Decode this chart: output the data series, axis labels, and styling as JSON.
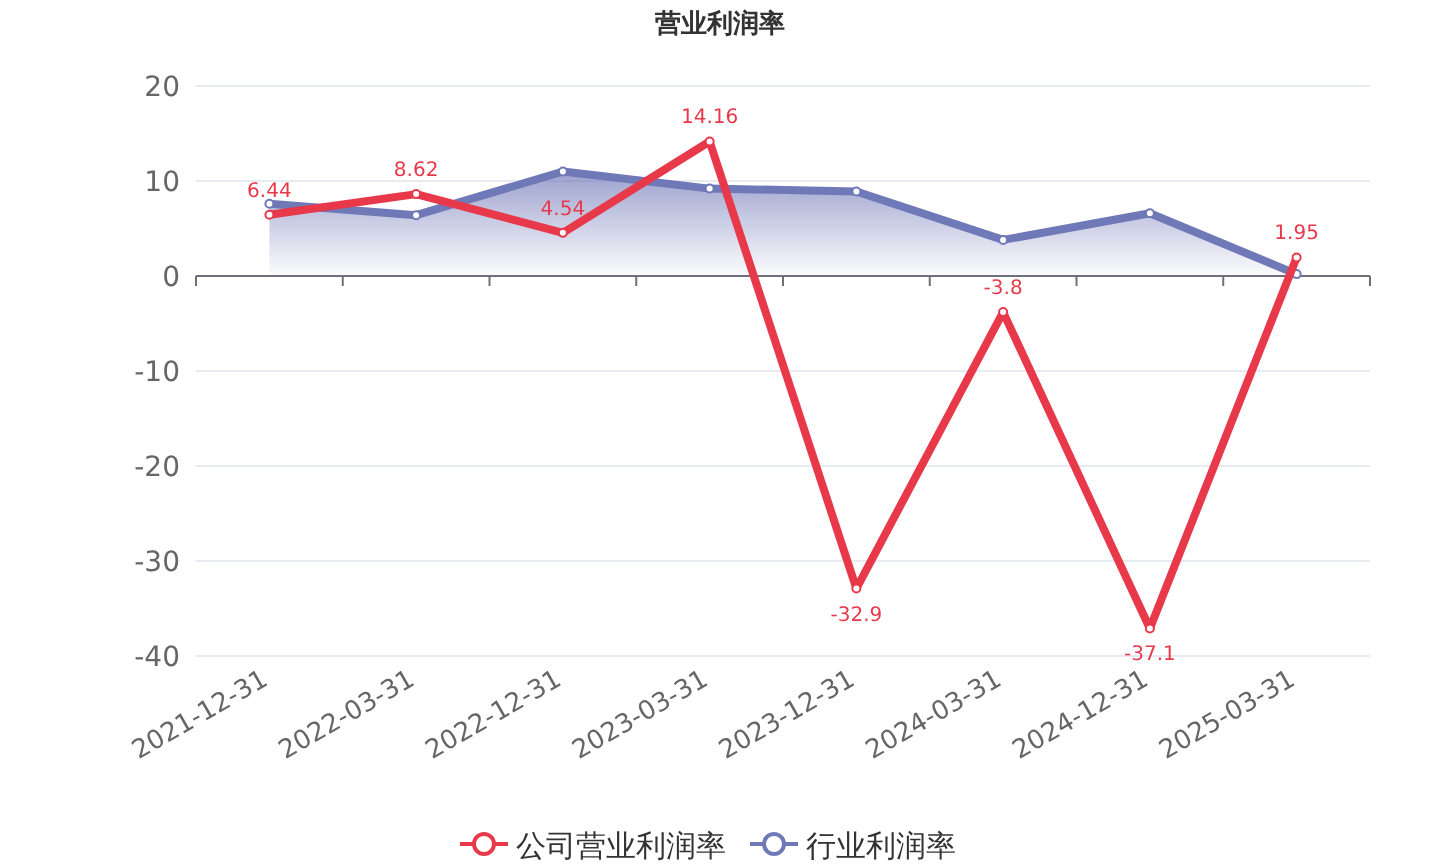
{
  "chart_data": {
    "type": "line",
    "title": "营业利润率",
    "categories": [
      "2021-12-31",
      "2022-03-31",
      "2022-12-31",
      "2023-03-31",
      "2023-12-31",
      "2024-03-31",
      "2024-12-31",
      "2025-03-31"
    ],
    "series": [
      {
        "name": "公司营业利润率",
        "color": "#e8394b",
        "values": [
          6.44,
          8.62,
          4.54,
          14.16,
          -32.9,
          -3.8,
          -37.1,
          1.95
        ],
        "data_labels": true
      },
      {
        "name": "行业利润率",
        "type": "area",
        "color": "#7079b8",
        "values": [
          7.6,
          6.4,
          11.0,
          9.2,
          8.9,
          3.8,
          6.6,
          0.2
        ]
      }
    ],
    "ylim": [
      -40,
      20
    ],
    "yticks": [
      -40,
      -30,
      -20,
      -10,
      0,
      10,
      20
    ],
    "grid": "y",
    "legend": "bottom",
    "marker": "circle",
    "line_style": "solid"
  }
}
